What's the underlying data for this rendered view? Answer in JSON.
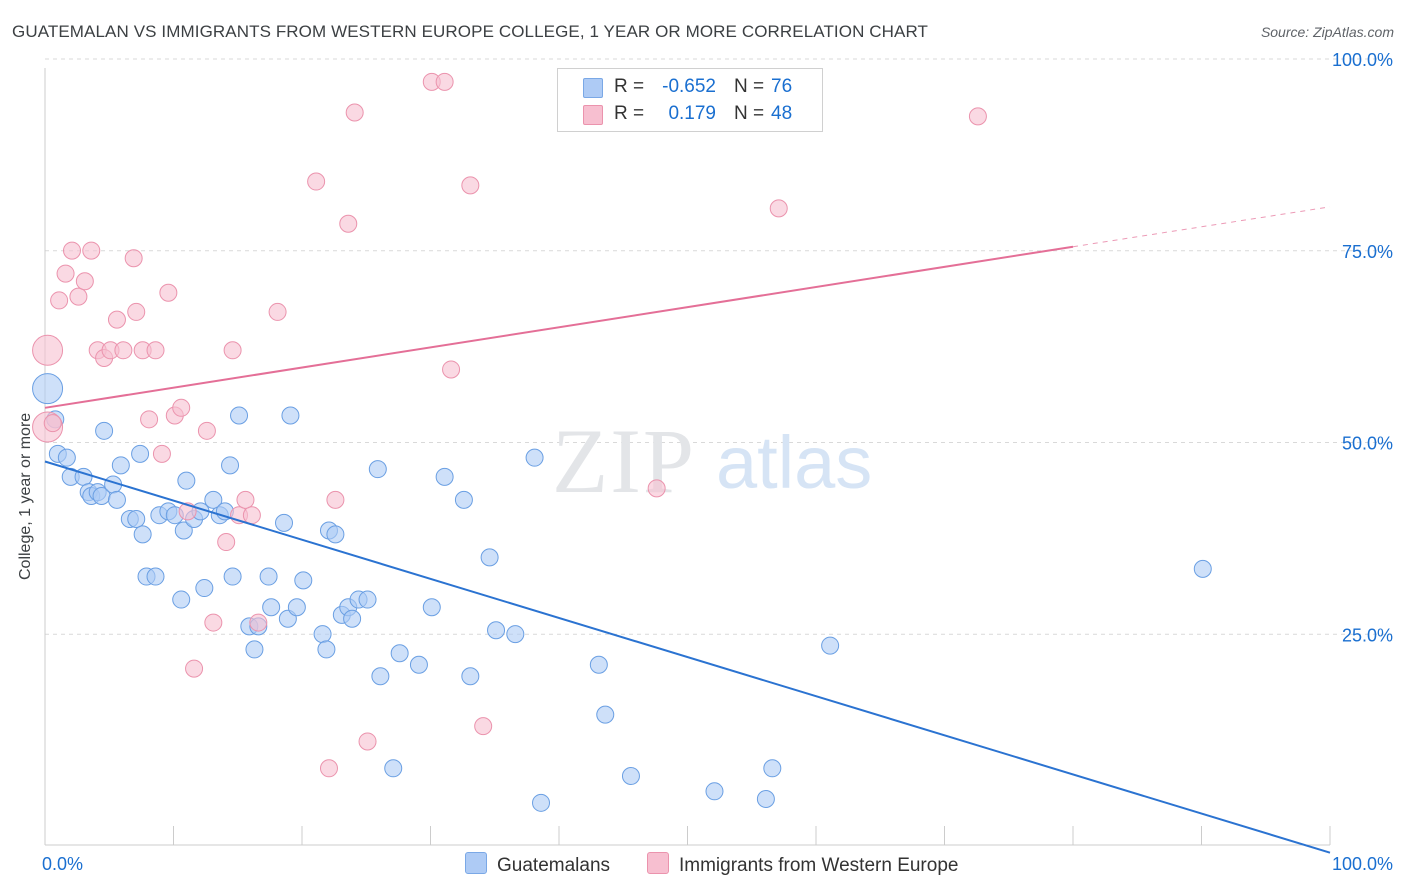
{
  "title": "GUATEMALAN VS IMMIGRANTS FROM WESTERN EUROPE COLLEGE, 1 YEAR OR MORE CORRELATION CHART",
  "source": "Source: ZipAtlas.com",
  "watermark": {
    "zip": "ZIP",
    "atlas": "atlas"
  },
  "legend": {
    "rows": [
      {
        "r_label": "R =",
        "r_value": "-0.652",
        "n_label": "N =",
        "n_value": "76",
        "color": "#aecbf5",
        "border": "#7aa8e6"
      },
      {
        "r_label": "R =",
        "r_value": "0.179",
        "n_label": "N =",
        "n_value": "48",
        "color": "#f7bfd0",
        "border": "#eb93ad"
      }
    ]
  },
  "bottom_legend": {
    "series1": "Guatemalans",
    "series2": "Immigrants from Western Europe"
  },
  "chart_data": {
    "type": "scatter",
    "title": "GUATEMALAN VS IMMIGRANTS FROM WESTERN EUROPE COLLEGE, 1 YEAR OR MORE CORRELATION CHART",
    "xlabel": "",
    "ylabel": "College, 1 year or more",
    "xlim": [
      0,
      100
    ],
    "ylim": [
      0,
      100
    ],
    "x_tick_labels": [
      "0.0%",
      "100.0%"
    ],
    "y_tick_labels": [
      "25.0%",
      "50.0%",
      "75.0%",
      "100.0%"
    ],
    "y_ticks": [
      25,
      50,
      75,
      100
    ],
    "grid": true,
    "series": [
      {
        "name": "Guatemalans",
        "color": "#aecbf5",
        "edge": "#6a9fe3",
        "trend_color": "#2b73d1",
        "trend": {
          "x0": 0,
          "y0": 50.0,
          "x1": 100,
          "y1": -1.0
        },
        "points": [
          [
            0.2,
            59.5
          ],
          [
            0.8,
            55.5
          ],
          [
            1.0,
            51.0
          ],
          [
            1.7,
            50.5
          ],
          [
            2.0,
            48.0
          ],
          [
            3.0,
            48.0
          ],
          [
            3.4,
            46.0
          ],
          [
            3.6,
            45.5
          ],
          [
            4.1,
            46.0
          ],
          [
            4.4,
            45.5
          ],
          [
            4.6,
            54.0
          ],
          [
            5.3,
            47.0
          ],
          [
            5.9,
            49.5
          ],
          [
            5.6,
            45.0
          ],
          [
            6.6,
            42.5
          ],
          [
            7.1,
            42.5
          ],
          [
            7.4,
            51.0
          ],
          [
            7.6,
            40.5
          ],
          [
            7.9,
            35.0
          ],
          [
            8.6,
            35.0
          ],
          [
            8.9,
            43.0
          ],
          [
            9.6,
            43.5
          ],
          [
            10.1,
            43.0
          ],
          [
            10.6,
            32.0
          ],
          [
            10.8,
            41.0
          ],
          [
            11.0,
            47.5
          ],
          [
            11.6,
            42.5
          ],
          [
            12.1,
            43.5
          ],
          [
            12.4,
            33.5
          ],
          [
            13.1,
            45.0
          ],
          [
            13.6,
            43.0
          ],
          [
            14.0,
            43.5
          ],
          [
            14.4,
            49.5
          ],
          [
            14.6,
            35.0
          ],
          [
            15.1,
            56.0
          ],
          [
            15.9,
            28.5
          ],
          [
            16.3,
            25.5
          ],
          [
            16.6,
            28.5
          ],
          [
            17.4,
            35.0
          ],
          [
            17.6,
            31.0
          ],
          [
            18.6,
            42.0
          ],
          [
            18.9,
            29.5
          ],
          [
            19.1,
            56.0
          ],
          [
            19.6,
            31.0
          ],
          [
            20.1,
            34.5
          ],
          [
            21.6,
            27.5
          ],
          [
            21.9,
            25.5
          ],
          [
            22.1,
            41.0
          ],
          [
            22.6,
            40.5
          ],
          [
            23.1,
            30.0
          ],
          [
            23.6,
            31.0
          ],
          [
            23.9,
            29.5
          ],
          [
            24.4,
            32.0
          ],
          [
            25.1,
            32.0
          ],
          [
            25.9,
            49.0
          ],
          [
            26.1,
            22.0
          ],
          [
            27.1,
            10.0
          ],
          [
            27.6,
            25.0
          ],
          [
            29.1,
            23.5
          ],
          [
            30.1,
            31.0
          ],
          [
            31.1,
            48.0
          ],
          [
            32.6,
            45.0
          ],
          [
            33.1,
            22.0
          ],
          [
            34.6,
            37.5
          ],
          [
            35.1,
            28.0
          ],
          [
            36.6,
            27.5
          ],
          [
            38.1,
            50.5
          ],
          [
            38.6,
            5.5
          ],
          [
            43.1,
            23.5
          ],
          [
            43.6,
            17.0
          ],
          [
            45.6,
            9.0
          ],
          [
            52.1,
            7.0
          ],
          [
            56.1,
            6.0
          ],
          [
            56.6,
            10.0
          ],
          [
            61.1,
            26.0
          ],
          [
            90.1,
            36.0
          ]
        ]
      },
      {
        "name": "Immigrants from Western Europe",
        "color": "#f7bfd0",
        "edge": "#eb93ad",
        "trend_color": "#e46f97",
        "trend": {
          "x0": 0,
          "y0": 57.0,
          "x1": 80,
          "y1": 78.0,
          "x_dash_end": 100,
          "y_dash_end": 83.2
        },
        "points": [
          [
            0.2,
            64.5
          ],
          [
            0.2,
            54.5
          ],
          [
            1.1,
            71.0
          ],
          [
            1.6,
            74.5
          ],
          [
            2.1,
            77.5
          ],
          [
            2.6,
            71.5
          ],
          [
            3.1,
            73.5
          ],
          [
            3.6,
            77.5
          ],
          [
            4.1,
            64.5
          ],
          [
            4.6,
            63.5
          ],
          [
            5.1,
            64.5
          ],
          [
            5.6,
            68.5
          ],
          [
            6.1,
            64.5
          ],
          [
            6.9,
            76.5
          ],
          [
            7.1,
            69.5
          ],
          [
            7.6,
            64.5
          ],
          [
            8.1,
            55.5
          ],
          [
            8.6,
            64.5
          ],
          [
            9.1,
            51.0
          ],
          [
            9.6,
            72.0
          ],
          [
            10.1,
            56.0
          ],
          [
            10.6,
            57.0
          ],
          [
            11.1,
            43.5
          ],
          [
            11.6,
            23.0
          ],
          [
            12.6,
            54.0
          ],
          [
            13.1,
            29.0
          ],
          [
            14.1,
            39.5
          ],
          [
            14.6,
            64.5
          ],
          [
            15.1,
            43.0
          ],
          [
            15.6,
            45.0
          ],
          [
            16.1,
            43.0
          ],
          [
            16.6,
            29.0
          ],
          [
            18.1,
            69.5
          ],
          [
            21.1,
            86.5
          ],
          [
            22.1,
            10.0
          ],
          [
            22.6,
            45.0
          ],
          [
            23.6,
            81.0
          ],
          [
            24.1,
            95.5
          ],
          [
            25.1,
            13.5
          ],
          [
            30.1,
            99.5
          ],
          [
            31.1,
            99.5
          ],
          [
            31.6,
            62.0
          ],
          [
            33.1,
            86.0
          ],
          [
            34.1,
            15.5
          ],
          [
            47.6,
            46.5
          ],
          [
            57.1,
            83.0
          ],
          [
            72.6,
            95.0
          ],
          [
            0.6,
            55.0
          ]
        ]
      }
    ]
  }
}
